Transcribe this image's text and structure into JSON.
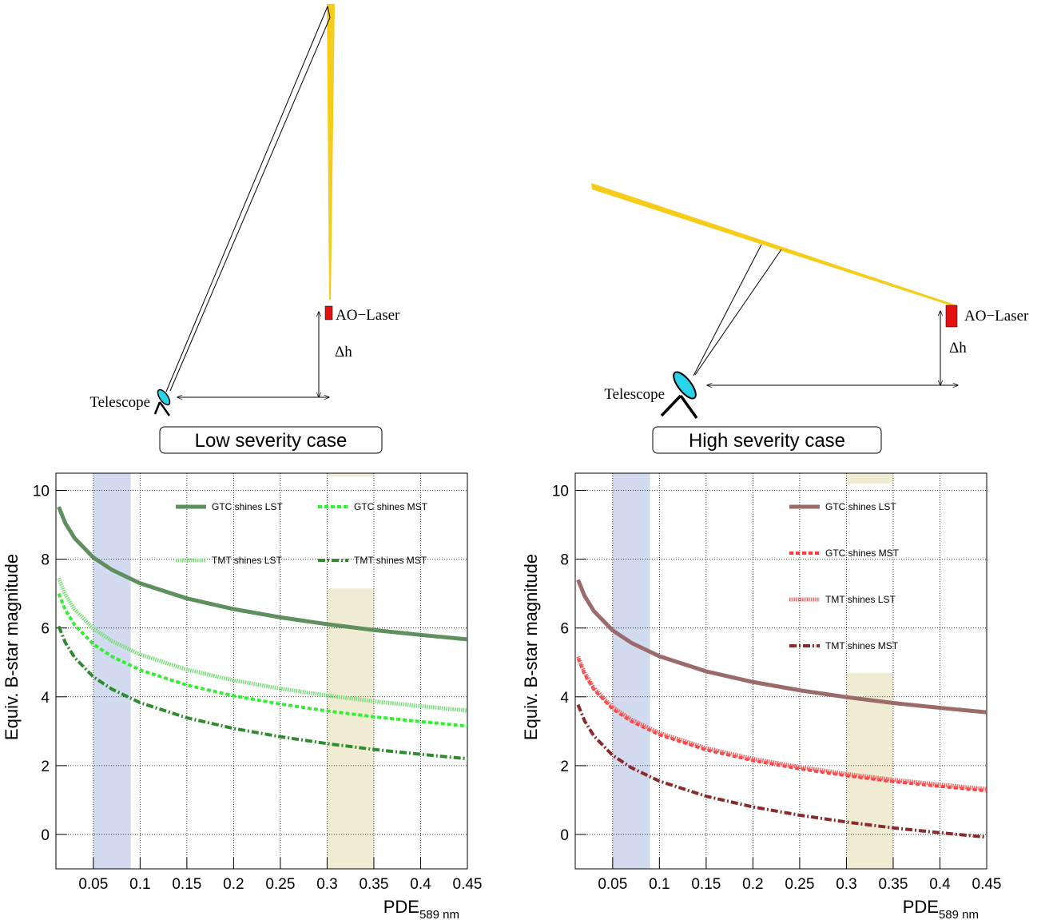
{
  "diagrams": [
    {
      "laser": "AO−Laser",
      "height": "Δh",
      "telescope": "Telescope",
      "caption": "Low severity case"
    },
    {
      "laser": "AO−Laser",
      "height": "Δh",
      "telescope": "Telescope",
      "caption": "High severity case"
    }
  ],
  "chart_data": [
    {
      "type": "line",
      "xlabel": "PDE",
      "xlabel_sub": "589 nm",
      "ylabel": "Equiv. B-star magnitude",
      "xlim": [
        0.01,
        0.45
      ],
      "ylim": [
        -1,
        10.5
      ],
      "xticks": [
        0.05,
        0.1,
        0.15,
        0.2,
        0.25,
        0.3,
        0.35,
        0.4,
        0.45
      ],
      "yticks": [
        0,
        2,
        4,
        6,
        8,
        10
      ],
      "grid": true,
      "legend_columns": 2,
      "bands": [
        {
          "x": [
            0.05,
            0.09
          ],
          "y": [
            -1,
            10.5
          ],
          "color": "#c9d3ec"
        },
        {
          "x": [
            0.3,
            0.35
          ],
          "y": [
            -1,
            7.15
          ],
          "color": "#ede9cc"
        },
        {
          "x": [
            0.3,
            0.35
          ],
          "y": [
            10.4,
            10.5
          ],
          "color": "#ede9cc"
        }
      ],
      "x": [
        0.013,
        0.02,
        0.03,
        0.05,
        0.07,
        0.1,
        0.15,
        0.2,
        0.25,
        0.3,
        0.35,
        0.4,
        0.45
      ],
      "series": [
        {
          "name": "GTC shines LST",
          "color": "#5f8f5f",
          "style": "solid",
          "values": [
            9.52,
            9.05,
            8.61,
            8.05,
            7.69,
            7.3,
            6.86,
            6.55,
            6.31,
            6.11,
            5.94,
            5.8,
            5.67
          ]
        },
        {
          "name": "GTC shines MST",
          "color": "#33ee33",
          "style": "dashed",
          "values": [
            7.0,
            6.53,
            6.09,
            5.53,
            5.17,
            4.78,
            4.34,
            4.03,
            3.79,
            3.59,
            3.42,
            3.28,
            3.15
          ]
        },
        {
          "name": "TMT shines LST",
          "color": "#77dd77",
          "style": "dotted",
          "values": [
            7.45,
            6.98,
            6.54,
            5.98,
            5.62,
            5.23,
            4.79,
            4.48,
            4.24,
            4.04,
            3.87,
            3.73,
            3.6
          ]
        },
        {
          "name": "TMT shines MST",
          "color": "#2e8b2e",
          "style": "dashdot",
          "values": [
            6.05,
            5.58,
            5.14,
            4.58,
            4.22,
            3.83,
            3.39,
            3.08,
            2.84,
            2.64,
            2.47,
            2.33,
            2.2
          ]
        }
      ]
    },
    {
      "type": "line",
      "xlabel": "PDE",
      "xlabel_sub": "589 nm",
      "ylabel": "Equiv. B-star magnitude",
      "xlim": [
        0.01,
        0.45
      ],
      "ylim": [
        -1,
        10.5
      ],
      "xticks": [
        0.05,
        0.1,
        0.15,
        0.2,
        0.25,
        0.3,
        0.35,
        0.4,
        0.45
      ],
      "yticks": [
        0,
        2,
        4,
        6,
        8,
        10
      ],
      "grid": true,
      "legend_columns": 1,
      "bands": [
        {
          "x": [
            0.05,
            0.09
          ],
          "y": [
            -1,
            10.5
          ],
          "color": "#c9d3ec"
        },
        {
          "x": [
            0.3,
            0.35
          ],
          "y": [
            -1,
            4.7
          ],
          "color": "#ede9cc"
        },
        {
          "x": [
            0.3,
            0.35
          ],
          "y": [
            10.2,
            10.5
          ],
          "color": "#ede9cc"
        }
      ],
      "x": [
        0.013,
        0.02,
        0.03,
        0.05,
        0.07,
        0.1,
        0.15,
        0.2,
        0.25,
        0.3,
        0.35,
        0.4,
        0.45
      ],
      "series": [
        {
          "name": "GTC shines LST",
          "color": "#9b6b6b",
          "style": "solid",
          "values": [
            7.4,
            6.93,
            6.49,
            5.93,
            5.57,
            5.18,
            4.74,
            4.43,
            4.19,
            3.99,
            3.82,
            3.68,
            3.55
          ]
        },
        {
          "name": "GTC shines MST",
          "color": "#ff3b3b",
          "style": "dashed",
          "values": [
            5.12,
            4.65,
            4.21,
            3.65,
            3.29,
            2.9,
            2.46,
            2.15,
            1.91,
            1.71,
            1.54,
            1.4,
            1.27
          ]
        },
        {
          "name": "TMT shines LST",
          "color": "#ee6666",
          "style": "dotted",
          "values": [
            5.17,
            4.7,
            4.26,
            3.7,
            3.34,
            2.95,
            2.51,
            2.2,
            1.96,
            1.76,
            1.59,
            1.45,
            1.32
          ]
        },
        {
          "name": "TMT shines MST",
          "color": "#8b2a2a",
          "style": "dashdot",
          "values": [
            3.77,
            3.3,
            2.86,
            2.3,
            1.94,
            1.55,
            1.11,
            0.8,
            0.56,
            0.36,
            0.19,
            0.05,
            -0.08
          ]
        }
      ]
    }
  ]
}
